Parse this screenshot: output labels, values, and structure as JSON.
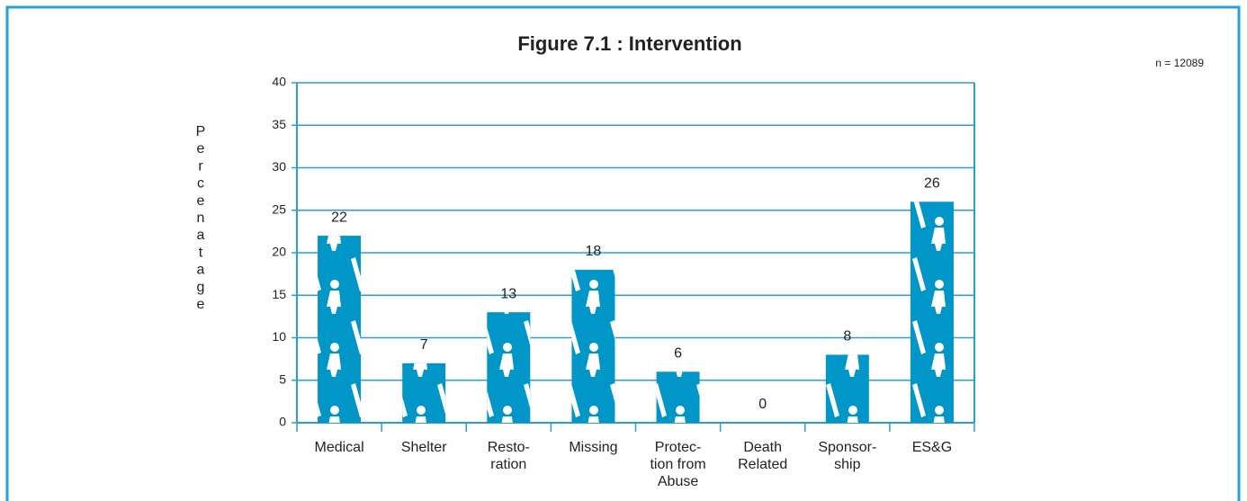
{
  "chart_data": {
    "type": "bar",
    "title": "Figure 7.1 : Intervention",
    "note": "n = 12089",
    "y_label": "Percenatage",
    "categories": [
      [
        "Medical"
      ],
      [
        "Shelter"
      ],
      [
        "Resto-",
        "ration"
      ],
      [
        "Missing"
      ],
      [
        "Protec-",
        "tion from",
        "Abuse"
      ],
      [
        "Death",
        "Related"
      ],
      [
        "Sponsor-",
        "ship"
      ],
      [
        "ES&G"
      ]
    ],
    "values": [
      22,
      7,
      13,
      18,
      6,
      0,
      8,
      26
    ],
    "color": "#0096c8",
    "ylim": [
      0,
      40
    ],
    "yticks": [
      0,
      5,
      10,
      15,
      20,
      25,
      30,
      35,
      40
    ],
    "grid": true
  }
}
